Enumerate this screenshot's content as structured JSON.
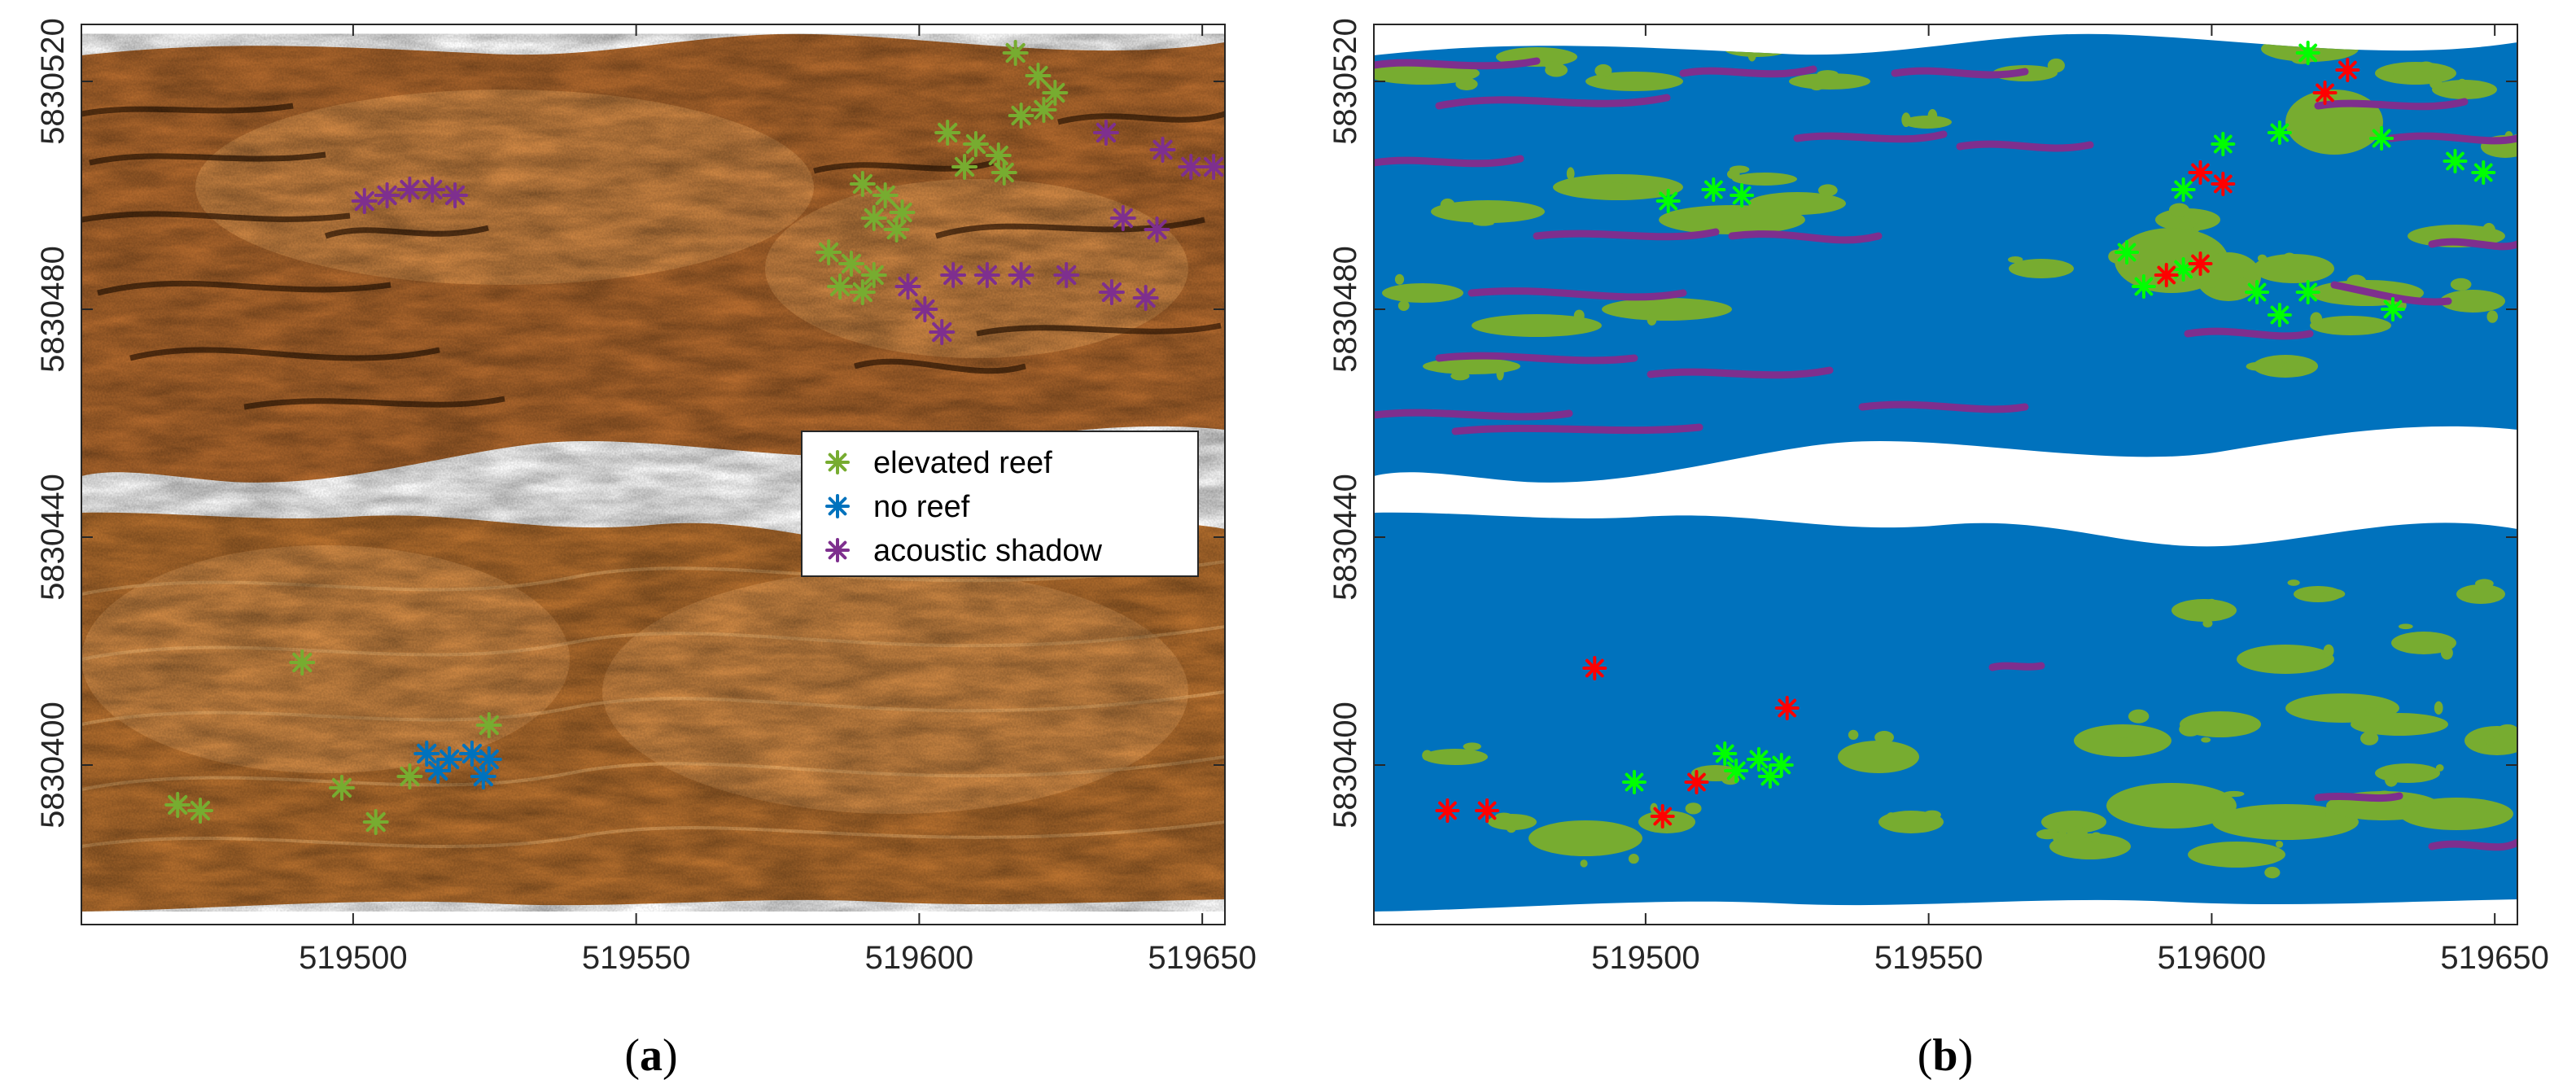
{
  "chart_data": [
    {
      "type": "scatter",
      "panel_label": "a",
      "xlim": [
        519452,
        519654
      ],
      "ylim": [
        5830372,
        5830530
      ],
      "x_ticks": [
        "519500",
        "519550",
        "519600",
        "519650"
      ],
      "y_ticks": [
        "5830400",
        "5830440",
        "5830480",
        "5830520"
      ],
      "x_tick_values": [
        519500,
        519550,
        519600,
        519650
      ],
      "y_tick_values": [
        5830400,
        5830440,
        5830480,
        5830520
      ],
      "background": "side-scan sonar mosaic (two swaths)",
      "legend": {
        "placement": "center-right",
        "entries": [
          "elevated reef",
          "no reef",
          "acoustic shadow"
        ]
      },
      "series": [
        {
          "name": "elevated reef",
          "color": "#77AC30",
          "marker": "asterisk",
          "points": [
            [
              519617,
              5830525
            ],
            [
              519621,
              5830521
            ],
            [
              519624,
              5830518
            ],
            [
              519622,
              5830515
            ],
            [
              519618,
              5830514
            ],
            [
              519605,
              5830511
            ],
            [
              519610,
              5830509
            ],
            [
              519614,
              5830507
            ],
            [
              519608,
              5830505
            ],
            [
              519615,
              5830504
            ],
            [
              519590,
              5830502
            ],
            [
              519594,
              5830500
            ],
            [
              519597,
              5830497
            ],
            [
              519592,
              5830496
            ],
            [
              519596,
              5830494
            ],
            [
              519584,
              5830490
            ],
            [
              519588,
              5830488
            ],
            [
              519592,
              5830486
            ],
            [
              519586,
              5830484
            ],
            [
              519590,
              5830483
            ],
            [
              519491,
              5830418
            ],
            [
              519524,
              5830407
            ],
            [
              519510,
              5830398
            ],
            [
              519498,
              5830396
            ],
            [
              519469,
              5830393
            ],
            [
              519473,
              5830392
            ],
            [
              519504,
              5830390
            ]
          ]
        },
        {
          "name": "no reef",
          "color": "#0072BD",
          "marker": "asterisk",
          "points": [
            [
              519513,
              5830402
            ],
            [
              519517,
              5830401
            ],
            [
              519521,
              5830402
            ],
            [
              519524,
              5830401
            ],
            [
              519515,
              5830399
            ],
            [
              519523,
              5830398
            ]
          ]
        },
        {
          "name": "acoustic shadow",
          "color": "#7E2F8E",
          "marker": "asterisk",
          "points": [
            [
              519502,
              5830499
            ],
            [
              519506,
              5830500
            ],
            [
              519510,
              5830501
            ],
            [
              519514,
              5830501
            ],
            [
              519518,
              5830500
            ],
            [
              519633,
              5830511
            ],
            [
              519643,
              5830508
            ],
            [
              519648,
              5830505
            ],
            [
              519652,
              5830505
            ],
            [
              519636,
              5830496
            ],
            [
              519642,
              5830494
            ],
            [
              519606,
              5830486
            ],
            [
              519612,
              5830486
            ],
            [
              519618,
              5830486
            ],
            [
              519626,
              5830486
            ],
            [
              519634,
              5830483
            ],
            [
              519640,
              5830482
            ],
            [
              519598,
              5830484
            ],
            [
              519601,
              5830480
            ],
            [
              519604,
              5830476
            ]
          ]
        }
      ]
    },
    {
      "type": "heatmap",
      "panel_label": "b",
      "xlim": [
        519452,
        519654
      ],
      "ylim": [
        5830372,
        5830530
      ],
      "x_ticks": [
        "519500",
        "519550",
        "519600",
        "519650"
      ],
      "y_ticks": [
        "5830400",
        "5830440",
        "5830480",
        "5830520"
      ],
      "x_tick_values": [
        519500,
        519550,
        519600,
        519650
      ],
      "y_tick_values": [
        5830400,
        5830440,
        5830480,
        5830520
      ],
      "classes": [
        {
          "color": "#0072BD"
        },
        {
          "color": "#77AC30"
        },
        {
          "color": "#7E2F8E"
        }
      ],
      "overlay_markers": [
        {
          "color": "#00FF00",
          "marker": "asterisk",
          "points": [
            [
              519617,
              5830525
            ],
            [
              519612,
              5830511
            ],
            [
              519602,
              5830509
            ],
            [
              519595,
              5830501
            ],
            [
              519648,
              5830504
            ],
            [
              519643,
              5830506
            ],
            [
              519630,
              5830510
            ],
            [
              519585,
              5830490
            ],
            [
              519595,
              5830487
            ],
            [
              519588,
              5830484
            ],
            [
              519608,
              5830483
            ],
            [
              519612,
              5830479
            ],
            [
              519617,
              5830483
            ],
            [
              519632,
              5830480
            ],
            [
              519504,
              5830499
            ],
            [
              519512,
              5830501
            ],
            [
              519517,
              5830500
            ],
            [
              519514,
              5830402
            ],
            [
              519520,
              5830401
            ],
            [
              519524,
              5830400
            ],
            [
              519516,
              5830399
            ],
            [
              519522,
              5830398
            ],
            [
              519498,
              5830397
            ]
          ]
        },
        {
          "color": "#FF0000",
          "marker": "asterisk",
          "points": [
            [
              519624,
              5830522
            ],
            [
              519620,
              5830518
            ],
            [
              519598,
              5830504
            ],
            [
              519602,
              5830502
            ],
            [
              519598,
              5830488
            ],
            [
              519592,
              5830486
            ],
            [
              519491,
              5830417
            ],
            [
              519525,
              5830410
            ],
            [
              519509,
              5830397
            ],
            [
              519503,
              5830391
            ],
            [
              519465,
              5830392
            ],
            [
              519472,
              5830392
            ]
          ]
        }
      ]
    }
  ]
}
